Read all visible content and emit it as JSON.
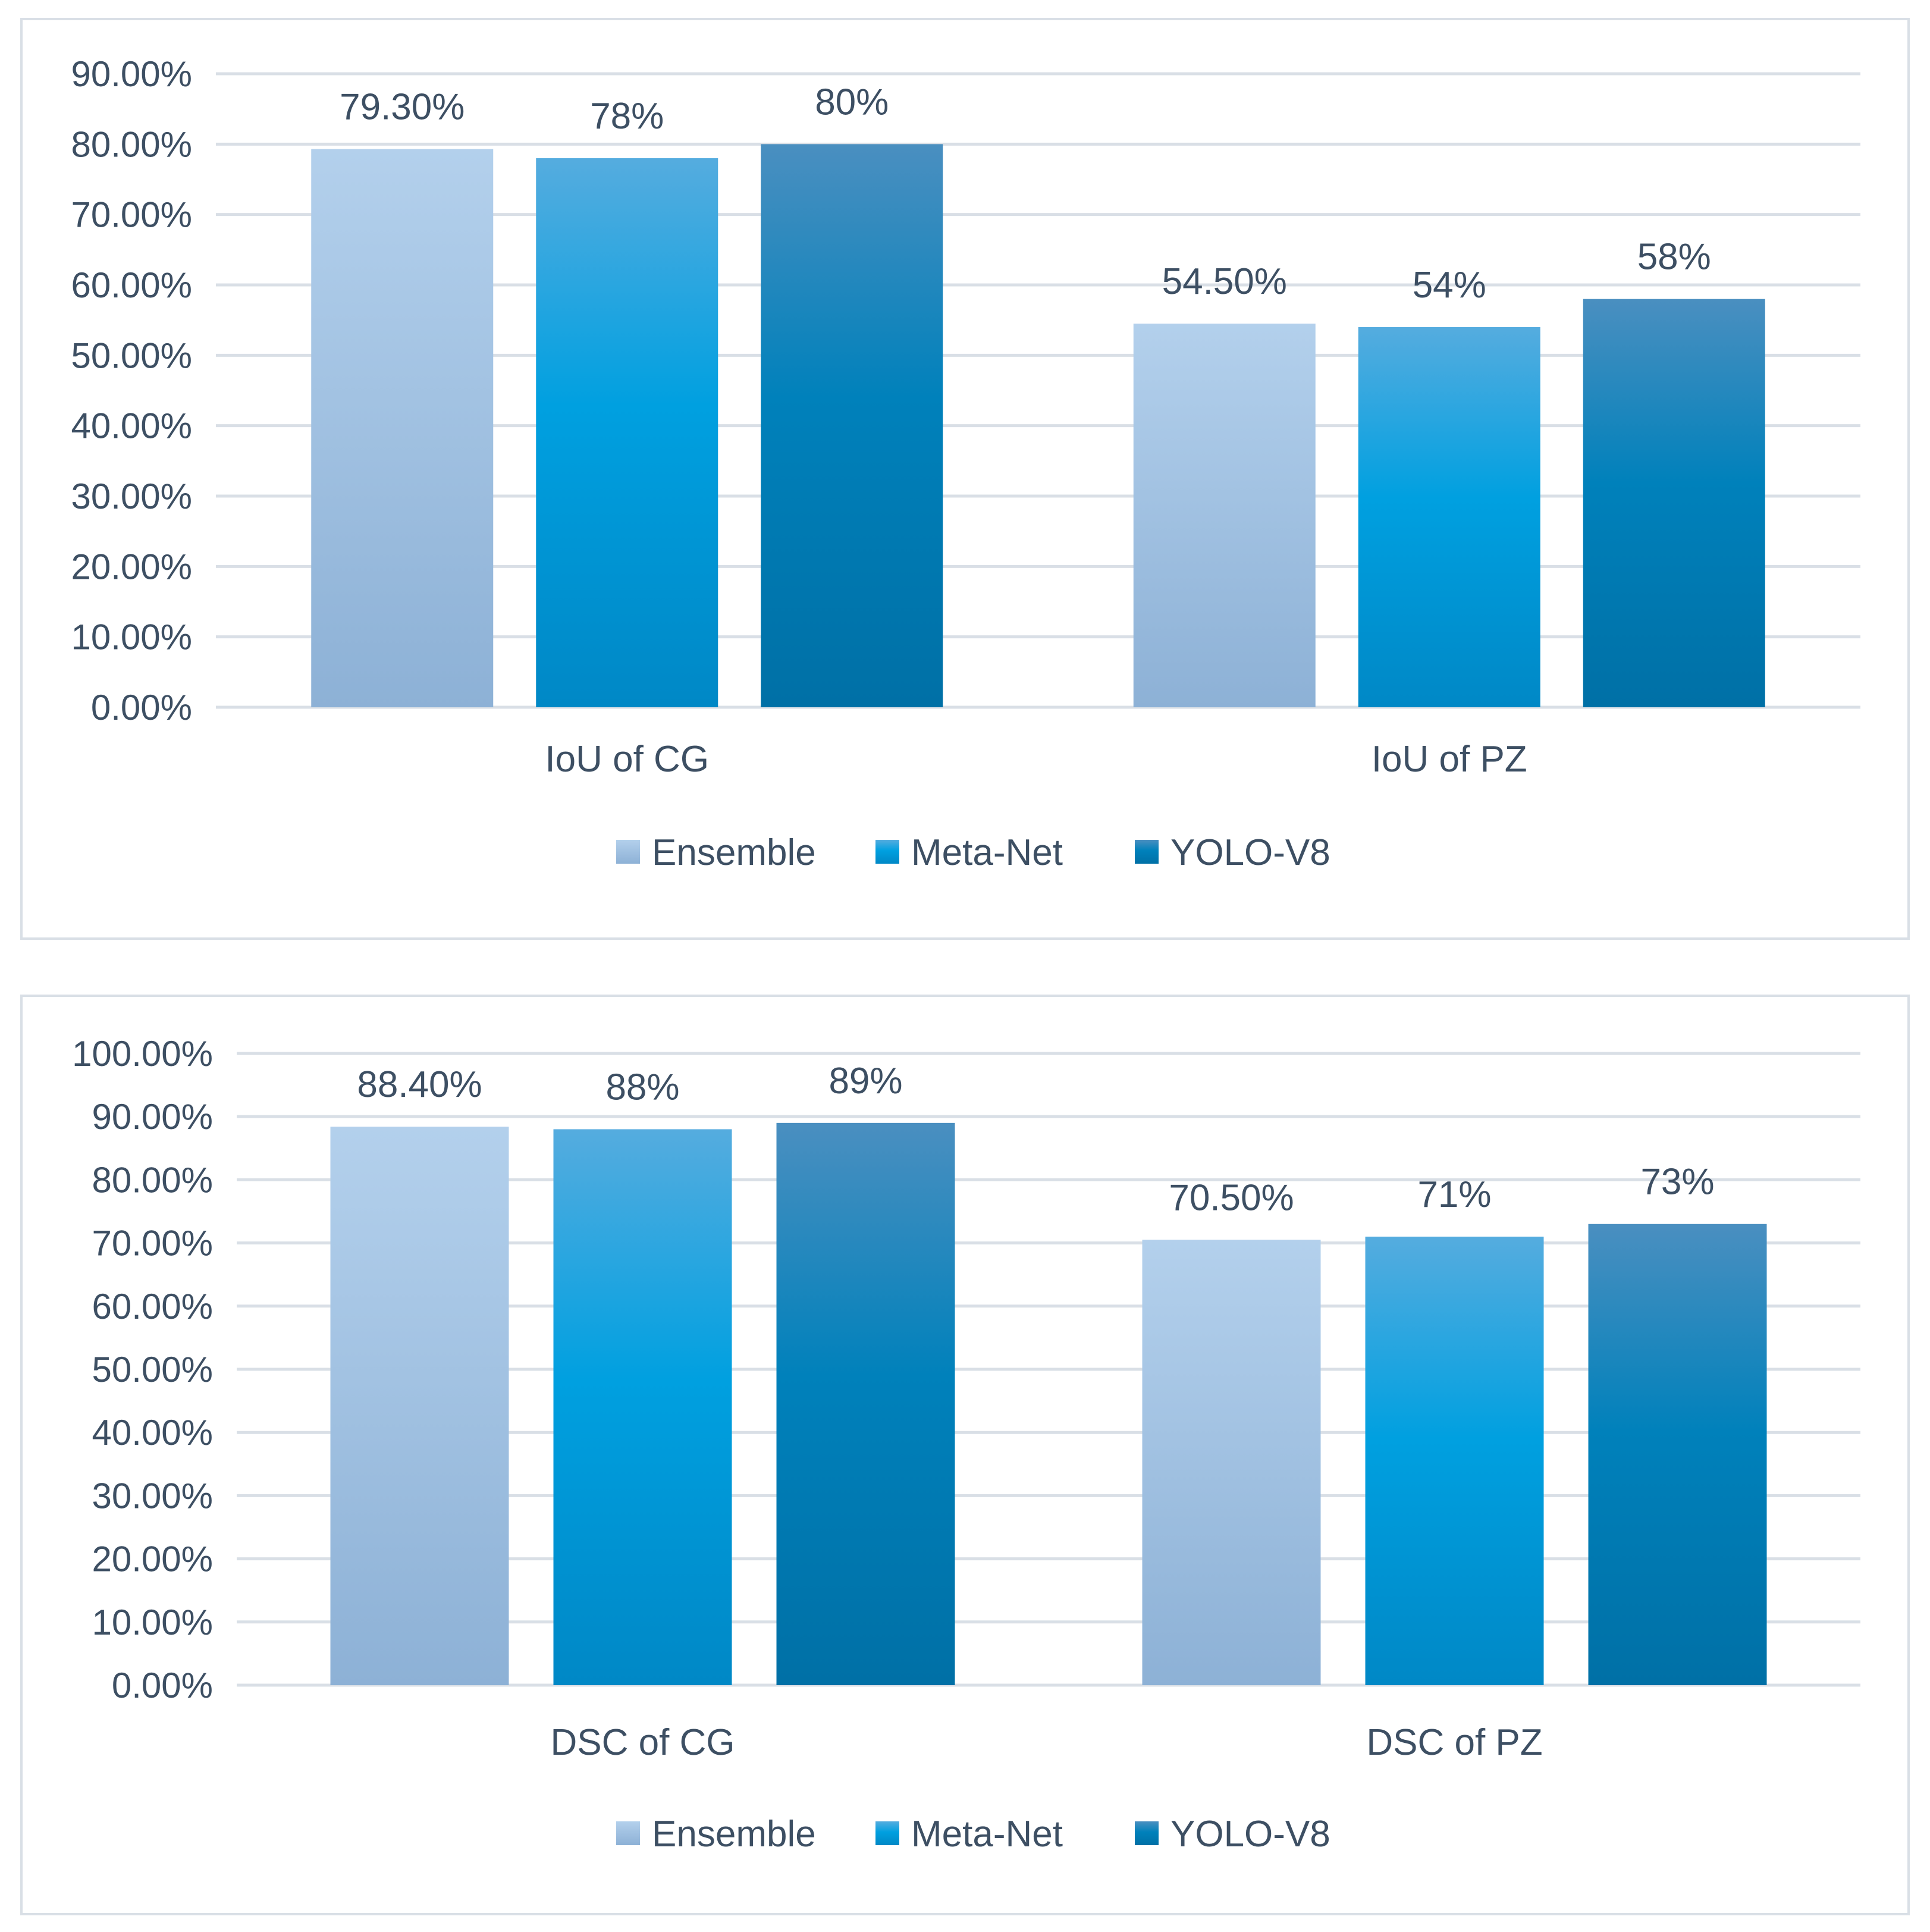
{
  "colors": {
    "ensemble_top": "#b3d0ec",
    "ensemble_bottom": "#8db1d6",
    "metanet_top": "#55acdf",
    "metanet_mid": "#00a0e0",
    "metanet_bottom": "#0088c6",
    "yolo_top": "#4a8fc0",
    "yolo_mid": "#0081bb",
    "yolo_bottom": "#0070a6",
    "gridline": "#d9dfe6",
    "text": "#3d4f63"
  },
  "chart_data": [
    {
      "type": "bar",
      "categories": [
        "IoU of CG",
        "IoU of PZ"
      ],
      "series": [
        {
          "name": "Ensemble",
          "values": [
            79.3,
            54.5
          ],
          "labels": [
            "79.30%",
            "54.50%"
          ]
        },
        {
          "name": "Meta-Net",
          "values": [
            78,
            54
          ],
          "labels": [
            "78%",
            "54%"
          ]
        },
        {
          "name": "YOLO-V8",
          "values": [
            80,
            58
          ],
          "labels": [
            "80%",
            "58%"
          ]
        }
      ],
      "ylim": [
        0,
        90
      ],
      "yticks": [
        "0.00%",
        "10.00%",
        "20.00%",
        "30.00%",
        "40.00%",
        "50.00%",
        "60.00%",
        "70.00%",
        "80.00%",
        "90.00%"
      ],
      "grid": true,
      "legend": "bottom"
    },
    {
      "type": "bar",
      "categories": [
        "DSC of CG",
        "DSC of PZ"
      ],
      "series": [
        {
          "name": "Ensemble",
          "values": [
            88.4,
            70.5
          ],
          "labels": [
            "88.40%",
            "70.50%"
          ]
        },
        {
          "name": "Meta-Net",
          "values": [
            88,
            71
          ],
          "labels": [
            "88%",
            "71%"
          ]
        },
        {
          "name": "YOLO-V8",
          "values": [
            89,
            73
          ],
          "labels": [
            "89%",
            "73%"
          ]
        }
      ],
      "ylim": [
        0,
        100
      ],
      "yticks": [
        "0.00%",
        "10.00%",
        "20.00%",
        "30.00%",
        "40.00%",
        "50.00%",
        "60.00%",
        "70.00%",
        "80.00%",
        "90.00%",
        "100.00%"
      ],
      "grid": true,
      "legend": "bottom"
    }
  ]
}
